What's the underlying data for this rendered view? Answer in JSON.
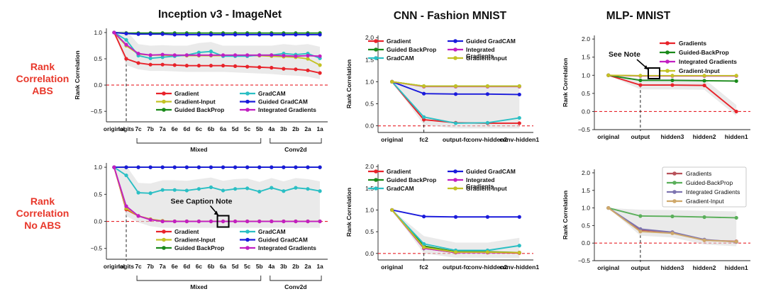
{
  "titles": [
    "Inception v3 - ImageNet",
    "CNN - Fashion MNIST",
    "MLP- MNIST"
  ],
  "row_labels": {
    "abs": [
      "Rank",
      "Correlation",
      "ABS"
    ],
    "noabs": [
      "Rank",
      "Correlation",
      "No ABS"
    ]
  },
  "colors": {
    "Gradient": "#e8232a",
    "Gradients": "#e8232a",
    "Gradient-Input": "#c3c224",
    "Guided BackProp": "#1a8a1a",
    "Guided-BackProp": "#1a8a1a",
    "GradCAM": "#2bbfc4",
    "Guided GradCAM": "#1a1adb",
    "Integrated Gradients": "#c21fc2",
    "Mid-Gradients": "#b8525a",
    "Mid-Guided-BackProp": "#5aaf5a",
    "Mid-Integrated Gradients": "#7d74b0",
    "Mid-Gradient-Input": "#cfa86a",
    "reference": "#e8232a",
    "band": "#d9d9d9"
  },
  "chart_data": [
    {
      "id": "inc_abs",
      "type": "line",
      "title": "Inception v3 - ImageNet",
      "ylabel": "Rank Correlation",
      "ylim": [
        -0.7,
        1.08
      ],
      "yticks": [
        -0.5,
        0.0,
        0.5,
        1.0
      ],
      "yticklabels": [
        "−0.5",
        "0.0",
        "0.5",
        "1.0"
      ],
      "categories": [
        "original",
        "logits",
        "7c",
        "7b",
        "7a",
        "6e",
        "6d",
        "6c",
        "6b",
        "6a",
        "5d",
        "5c",
        "5b",
        "4a",
        "3b",
        "2b",
        "2a",
        "1a"
      ],
      "dashed_at": "logits",
      "groups": [
        {
          "label": "Mixed",
          "from": "7c",
          "to": "5b"
        },
        {
          "label": "Conv2d",
          "from": "4a",
          "to": "1a"
        }
      ],
      "legend": {
        "columns": 2,
        "position": "bottom-center",
        "entries": [
          "Gradient",
          "GradCAM",
          "Gradient-Input",
          "Guided GradCAM",
          "Guided BackProp",
          "Integrated Gradients"
        ]
      },
      "series": [
        {
          "name": "Gradient",
          "values": [
            1.0,
            0.5,
            0.42,
            0.39,
            0.39,
            0.38,
            0.37,
            0.37,
            0.37,
            0.37,
            0.36,
            0.35,
            0.34,
            0.33,
            0.31,
            0.3,
            0.28,
            0.23
          ]
        },
        {
          "name": "Gradient-Input",
          "values": [
            1.0,
            0.75,
            0.59,
            0.57,
            0.57,
            0.56,
            0.56,
            0.56,
            0.56,
            0.56,
            0.56,
            0.56,
            0.56,
            0.55,
            0.54,
            0.53,
            0.5,
            0.38
          ]
        },
        {
          "name": "Guided BackProp",
          "values": [
            1.0,
            0.99,
            0.99,
            0.99,
            0.99,
            0.99,
            0.99,
            0.99,
            0.99,
            0.99,
            0.99,
            0.99,
            0.99,
            0.99,
            0.99,
            0.99,
            0.99,
            0.99
          ]
        },
        {
          "name": "GradCAM",
          "values": [
            1.0,
            0.86,
            0.56,
            0.51,
            0.53,
            0.55,
            0.57,
            0.62,
            0.64,
            0.55,
            0.55,
            0.55,
            0.57,
            0.57,
            0.6,
            0.58,
            0.6,
            0.51
          ]
        },
        {
          "name": "Guided GradCAM",
          "values": [
            1.0,
            0.98,
            0.97,
            0.97,
            0.97,
            0.96,
            0.96,
            0.96,
            0.96,
            0.96,
            0.96,
            0.96,
            0.96,
            0.96,
            0.96,
            0.96,
            0.96,
            0.96
          ]
        },
        {
          "name": "Integrated Gradients",
          "values": [
            1.0,
            0.77,
            0.6,
            0.57,
            0.58,
            0.57,
            0.57,
            0.57,
            0.57,
            0.57,
            0.57,
            0.57,
            0.57,
            0.57,
            0.56,
            0.55,
            0.56,
            0.55
          ]
        }
      ]
    },
    {
      "id": "cnn_abs",
      "type": "line",
      "title": "CNN - Fashion MNIST",
      "ylabel": "Rank Correlation",
      "ylim": [
        -0.15,
        2.05
      ],
      "yticks": [
        0.0,
        0.5,
        1.0,
        1.5,
        2.0
      ],
      "yticklabels": [
        "0.0",
        "0.5",
        "1.0",
        "1.5",
        "2.0"
      ],
      "categories": [
        "original",
        "fc2",
        "output-fc",
        "conv-hidden2",
        "conv-hidden1"
      ],
      "dashed_at": "fc2",
      "legend": {
        "columns": 2,
        "position": "top",
        "entries": [
          "Gradient",
          "Guided GradCAM",
          "Guided BackProp",
          "Integrated Gradients",
          "GradCAM",
          "Gradient-Input"
        ]
      },
      "series": [
        {
          "name": "Gradient",
          "values": [
            1.0,
            0.14,
            0.07,
            0.06,
            0.06
          ]
        },
        {
          "name": "Guided BackProp",
          "values": [
            1.0,
            0.9,
            0.9,
            0.9,
            0.9
          ]
        },
        {
          "name": "GradCAM",
          "values": [
            1.0,
            0.2,
            0.06,
            0.07,
            0.18
          ]
        },
        {
          "name": "Guided GradCAM",
          "values": [
            1.0,
            0.73,
            0.72,
            0.72,
            0.71
          ]
        },
        {
          "name": "Integrated Gradients",
          "values": [
            1.0,
            0.89,
            0.89,
            0.89,
            0.89
          ]
        },
        {
          "name": "Gradient-Input",
          "values": [
            1.0,
            0.9,
            0.9,
            0.9,
            0.9
          ]
        }
      ]
    },
    {
      "id": "mlp_abs",
      "type": "line",
      "title": "MLP- MNIST",
      "ylabel": "Rank Correlation",
      "ylim": [
        -0.5,
        2.1
      ],
      "yticks": [
        -0.5,
        0.0,
        0.5,
        1.0,
        1.5,
        2.0
      ],
      "yticklabels": [
        "−0.5",
        "0.0",
        "0.5",
        "1.0",
        "1.5",
        "2.0"
      ],
      "categories": [
        "original",
        "output",
        "hidden3",
        "hidden2",
        "hidden1"
      ],
      "dashed_at": "output",
      "legend": {
        "columns": 1,
        "position": "top-right",
        "entries": [
          "Gradients",
          "Guided-BackProp",
          "Integrated Gradients",
          "Gradient-Input"
        ]
      },
      "series": [
        {
          "name": "Gradients",
          "values": [
            1.0,
            0.73,
            0.73,
            0.72,
            0.0
          ]
        },
        {
          "name": "Guided-BackProp",
          "values": [
            1.0,
            0.86,
            0.86,
            0.85,
            0.84
          ]
        },
        {
          "name": "Integrated Gradients",
          "values": [
            1.0,
            0.98,
            0.98,
            0.98,
            0.98
          ]
        },
        {
          "name": "Gradient-Input",
          "values": [
            1.0,
            0.99,
            0.99,
            0.99,
            0.99
          ]
        }
      ]
    },
    {
      "id": "inc_noabs",
      "type": "line",
      "title": "",
      "ylabel": "",
      "ylim": [
        -0.7,
        1.08
      ],
      "yticks": [
        -0.5,
        0.0,
        0.5,
        1.0
      ],
      "yticklabels": [
        "−0.5",
        "0.0",
        "0.5",
        "1.0"
      ],
      "categories": [
        "original",
        "logits",
        "7c",
        "7b",
        "7a",
        "6e",
        "6d",
        "6c",
        "6b",
        "6a",
        "5d",
        "5c",
        "5b",
        "4a",
        "3b",
        "2b",
        "2a",
        "1a"
      ],
      "dashed_at": "logits",
      "groups": [
        {
          "label": "Mixed",
          "from": "7c",
          "to": "5b"
        },
        {
          "label": "Conv2d",
          "from": "4a",
          "to": "1a"
        }
      ],
      "legend": {
        "columns": 2,
        "position": "bottom-center",
        "entries": [
          "Gradient",
          "GradCAM",
          "Gradient-Input",
          "Guided GradCAM",
          "Guided BackProp",
          "Integrated Gradients"
        ]
      },
      "series": [
        {
          "name": "Gradient",
          "values": [
            1.0,
            0.22,
            0.1,
            0.04,
            0.0,
            0.0,
            0.0,
            0.0,
            0.0,
            0.0,
            0.0,
            0.0,
            0.0,
            0.0,
            0.0,
            0.0,
            0.0,
            0.0
          ]
        },
        {
          "name": "Gradient-Input",
          "values": [
            1.0,
            0.24,
            0.1,
            0.04,
            0.01,
            0.0,
            0.0,
            0.0,
            0.0,
            0.0,
            0.0,
            0.0,
            0.0,
            0.0,
            0.0,
            0.0,
            0.0,
            0.0
          ]
        },
        {
          "name": "Guided BackProp",
          "values": [
            1.0,
            1.0,
            1.0,
            1.0,
            1.0,
            1.0,
            1.0,
            1.0,
            1.0,
            1.0,
            1.0,
            1.0,
            1.0,
            1.0,
            1.0,
            1.0,
            1.0,
            1.0
          ]
        },
        {
          "name": "GradCAM",
          "values": [
            1.0,
            0.85,
            0.53,
            0.52,
            0.58,
            0.58,
            0.57,
            0.6,
            0.63,
            0.57,
            0.6,
            0.61,
            0.55,
            0.62,
            0.56,
            0.62,
            0.6,
            0.56
          ]
        },
        {
          "name": "Guided GradCAM",
          "values": [
            1.0,
            1.0,
            1.0,
            1.0,
            1.0,
            1.0,
            1.0,
            1.0,
            1.0,
            1.0,
            1.0,
            1.0,
            1.0,
            1.0,
            1.0,
            1.0,
            1.0,
            1.0
          ]
        },
        {
          "name": "Integrated Gradients",
          "values": [
            1.0,
            0.28,
            0.1,
            0.03,
            0.0,
            0.0,
            0.0,
            0.0,
            0.0,
            0.0,
            0.0,
            0.0,
            0.0,
            0.0,
            0.0,
            0.0,
            0.0,
            0.0
          ]
        }
      ],
      "annotation": {
        "text": "See Caption Note",
        "at": "6a",
        "value": 0.0
      }
    },
    {
      "id": "cnn_noabs",
      "type": "line",
      "title": "",
      "ylabel": "Rank Correlation",
      "ylim": [
        -0.15,
        2.05
      ],
      "yticks": [
        0.0,
        0.5,
        1.0,
        1.5,
        2.0
      ],
      "yticklabels": [
        "0.0",
        "0.5",
        "1.0",
        "1.5",
        "2.0"
      ],
      "categories": [
        "original",
        "fc2",
        "output-fc",
        "conv-hidden2",
        "conv-hidden1"
      ],
      "dashed_at": "fc2",
      "legend": {
        "columns": 2,
        "position": "top",
        "entries": [
          "Gradient",
          "Guided GradCAM",
          "Guided BackProp",
          "Integrated Gradients",
          "GradCAM",
          "Gradient-Input"
        ]
      },
      "series": [
        {
          "name": "Gradient",
          "values": [
            1.0,
            0.12,
            0.02,
            0.02,
            0.01
          ]
        },
        {
          "name": "Guided BackProp",
          "values": [
            1.0,
            0.17,
            0.04,
            0.04,
            0.02
          ]
        },
        {
          "name": "GradCAM",
          "values": [
            1.0,
            0.22,
            0.07,
            0.07,
            0.18
          ]
        },
        {
          "name": "Guided GradCAM",
          "values": [
            1.0,
            0.85,
            0.84,
            0.84,
            0.84
          ]
        },
        {
          "name": "Integrated Gradients",
          "values": [
            1.0,
            0.12,
            0.02,
            0.02,
            0.02
          ]
        },
        {
          "name": "Gradient-Input",
          "values": [
            1.0,
            0.14,
            0.03,
            0.03,
            0.02
          ]
        }
      ]
    },
    {
      "id": "mlp_noabs",
      "type": "line",
      "title": "",
      "ylabel": "Rank Correlation",
      "ylim": [
        -0.5,
        2.1
      ],
      "yticks": [
        -0.5,
        0.0,
        0.5,
        1.0,
        1.5,
        2.0
      ],
      "yticklabels": [
        "−0.5",
        "0.0",
        "0.5",
        "1.0",
        "1.5",
        "2.0"
      ],
      "categories": [
        "original",
        "output",
        "hidden3",
        "hidden2",
        "hidden1"
      ],
      "dashed_at": "output",
      "legend": {
        "columns": 1,
        "position": "top-right",
        "boxed": true,
        "entries": [
          "Gradients",
          "Guided-BackProp",
          "Integrated Gradients",
          "Gradient-Input"
        ]
      },
      "series": [
        {
          "name": "Gradients",
          "values": [
            1.0,
            0.37,
            0.31,
            0.08,
            0.05
          ]
        },
        {
          "name": "Guided-BackProp",
          "values": [
            1.0,
            0.77,
            0.76,
            0.74,
            0.72
          ]
        },
        {
          "name": "Integrated Gradients",
          "values": [
            1.0,
            0.4,
            0.31,
            0.1,
            0.03
          ]
        },
        {
          "name": "Gradient-Input",
          "values": [
            1.0,
            0.33,
            0.28,
            0.08,
            0.04
          ]
        }
      ]
    }
  ],
  "notes": {
    "mlp_abs": "See Note"
  }
}
